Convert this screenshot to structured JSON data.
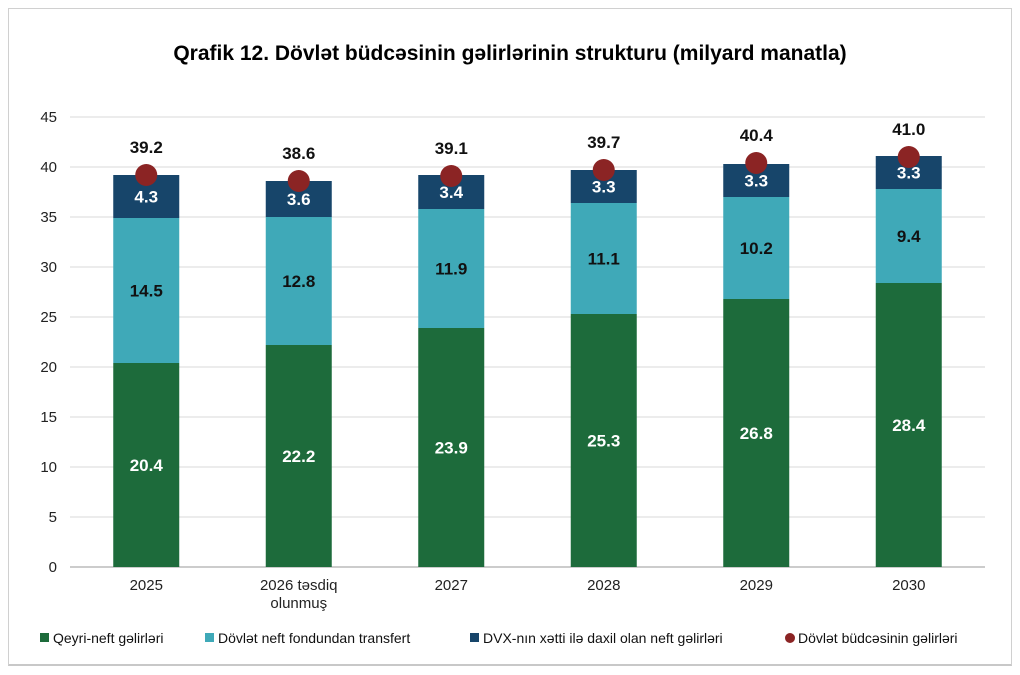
{
  "chart_data": {
    "type": "bar",
    "stacked": true,
    "title": "Qrafik 12. Dövlət büdcəsinin gəlirlərinin strukturu (milyard manatla)",
    "categories": [
      "2025",
      "2026 təsdiq olunmuş",
      "2027",
      "2028",
      "2029",
      "2030"
    ],
    "series": [
      {
        "name": "Qeyri-neft gəlirləri",
        "color": "#1d6b3b",
        "values": [
          20.4,
          22.2,
          23.9,
          25.3,
          26.8,
          28.4
        ]
      },
      {
        "name": "Dövlət neft fondundan transfert",
        "color": "#3fa9b8",
        "values": [
          14.5,
          12.8,
          11.9,
          11.1,
          10.2,
          9.4
        ]
      },
      {
        "name": "DVX-nın xətti ilə daxil olan neft gəlirləri",
        "color": "#17456a",
        "values": [
          4.3,
          3.6,
          3.4,
          3.3,
          3.3,
          3.3
        ]
      }
    ],
    "totals": {
      "name": "Dövlət büdcəsinin gəlirləri",
      "color": "#8b2424",
      "values": [
        39.2,
        38.6,
        39.1,
        39.7,
        40.4,
        41.0
      ]
    },
    "ylim": [
      0,
      45
    ],
    "yticks": [
      0,
      5,
      10,
      15,
      20,
      25,
      30,
      35,
      40,
      45
    ],
    "grid": true,
    "legend": "bottom"
  }
}
